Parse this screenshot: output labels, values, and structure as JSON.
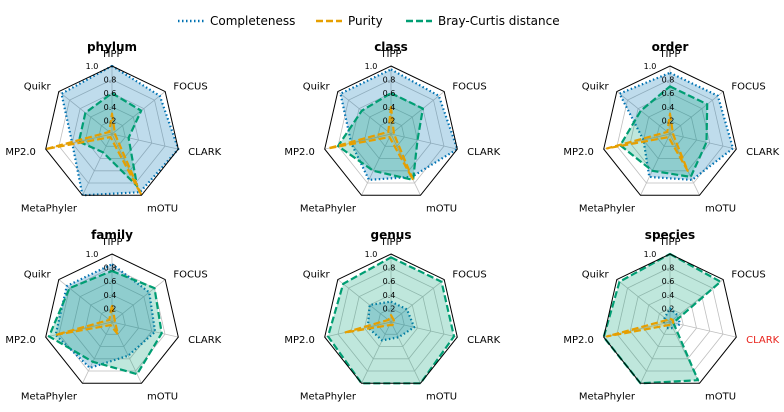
{
  "chart_data": {
    "type": "radar",
    "axes": [
      "TIPP",
      "FOCUS",
      "CLARK",
      "mOTU",
      "MetaPhyler",
      "MP2.0",
      "Quikr"
    ],
    "ticks": [
      "0.2",
      "0.4",
      "0.6",
      "0.8",
      "1.0"
    ],
    "rlim": [
      0,
      1
    ],
    "grid": true,
    "legend": {
      "placement": "top-center",
      "entries": [
        {
          "name": "Completeness",
          "color": "#0072b2",
          "style": "dotted"
        },
        {
          "name": "Purity",
          "color": "#e69f00",
          "style": "dashed"
        },
        {
          "name": "Bray-Curtis distance",
          "color": "#009e73",
          "style": "dashed"
        }
      ]
    },
    "panels": [
      {
        "title": "phylum",
        "highlight_axis": null,
        "series": [
          {
            "name": "Completeness",
            "values": [
              1.0,
              0.9,
              1.0,
              0.95,
              1.0,
              0.6,
              0.95
            ]
          },
          {
            "name": "Purity",
            "values": [
              0.3,
              0.05,
              0.05,
              1.0,
              0.05,
              1.0,
              0.05
            ]
          },
          {
            "name": "Bray-Curtis distance",
            "values": [
              0.6,
              0.55,
              0.25,
              0.85,
              0.3,
              0.5,
              0.5
            ]
          }
        ]
      },
      {
        "title": "class",
        "highlight_axis": null,
        "series": [
          {
            "name": "Completeness",
            "values": [
              0.95,
              0.9,
              1.0,
              0.7,
              0.75,
              0.6,
              0.95
            ]
          },
          {
            "name": "Purity",
            "values": [
              0.4,
              0.05,
              0.05,
              0.75,
              0.05,
              0.95,
              0.05
            ]
          },
          {
            "name": "Bray-Curtis distance",
            "values": [
              0.6,
              0.6,
              0.4,
              0.75,
              0.6,
              0.8,
              0.55
            ]
          }
        ]
      },
      {
        "title": "order",
        "highlight_axis": null,
        "series": [
          {
            "name": "Completeness",
            "values": [
              0.9,
              0.9,
              0.95,
              0.75,
              0.7,
              0.4,
              0.95
            ]
          },
          {
            "name": "Purity",
            "values": [
              0.3,
              0.05,
              0.05,
              0.6,
              0.05,
              0.95,
              0.05
            ]
          },
          {
            "name": "Bray-Curtis distance",
            "values": [
              0.7,
              0.7,
              0.55,
              0.7,
              0.6,
              0.75,
              0.55
            ]
          }
        ]
      },
      {
        "title": "family",
        "highlight_axis": null,
        "series": [
          {
            "name": "Completeness",
            "values": [
              0.85,
              0.7,
              0.65,
              0.55,
              0.75,
              0.85,
              0.85
            ]
          },
          {
            "name": "Purity",
            "values": [
              0.25,
              0.05,
              0.05,
              0.2,
              0.05,
              0.85,
              0.05
            ]
          },
          {
            "name": "Bray-Curtis distance",
            "values": [
              0.75,
              0.8,
              0.75,
              0.85,
              0.65,
              0.95,
              0.8
            ]
          }
        ]
      },
      {
        "title": "genus",
        "highlight_axis": null,
        "series": [
          {
            "name": "Completeness",
            "values": [
              0.3,
              0.3,
              0.35,
              0.25,
              0.3,
              0.35,
              0.4
            ]
          },
          {
            "name": "Purity",
            "values": [
              0.1,
              0.05,
              0.05,
              0.05,
              0.05,
              0.7,
              0.05
            ]
          },
          {
            "name": "Bray-Curtis distance",
            "values": [
              0.95,
              0.95,
              0.95,
              1.0,
              1.0,
              0.95,
              0.9
            ]
          }
        ]
      },
      {
        "title": "species",
        "highlight_axis": "CLARK",
        "series": [
          {
            "name": "Completeness",
            "values": [
              0.2,
              0.15,
              0.15,
              0.1,
              0.1,
              0.1,
              0.1
            ]
          },
          {
            "name": "Purity",
            "values": [
              0.05,
              0.05,
              0.05,
              0.05,
              0.05,
              0.95,
              0.05
            ]
          },
          {
            "name": "Bray-Curtis distance",
            "values": [
              1.0,
              0.95,
              0.05,
              0.95,
              1.0,
              1.0,
              0.95
            ]
          }
        ]
      }
    ]
  }
}
